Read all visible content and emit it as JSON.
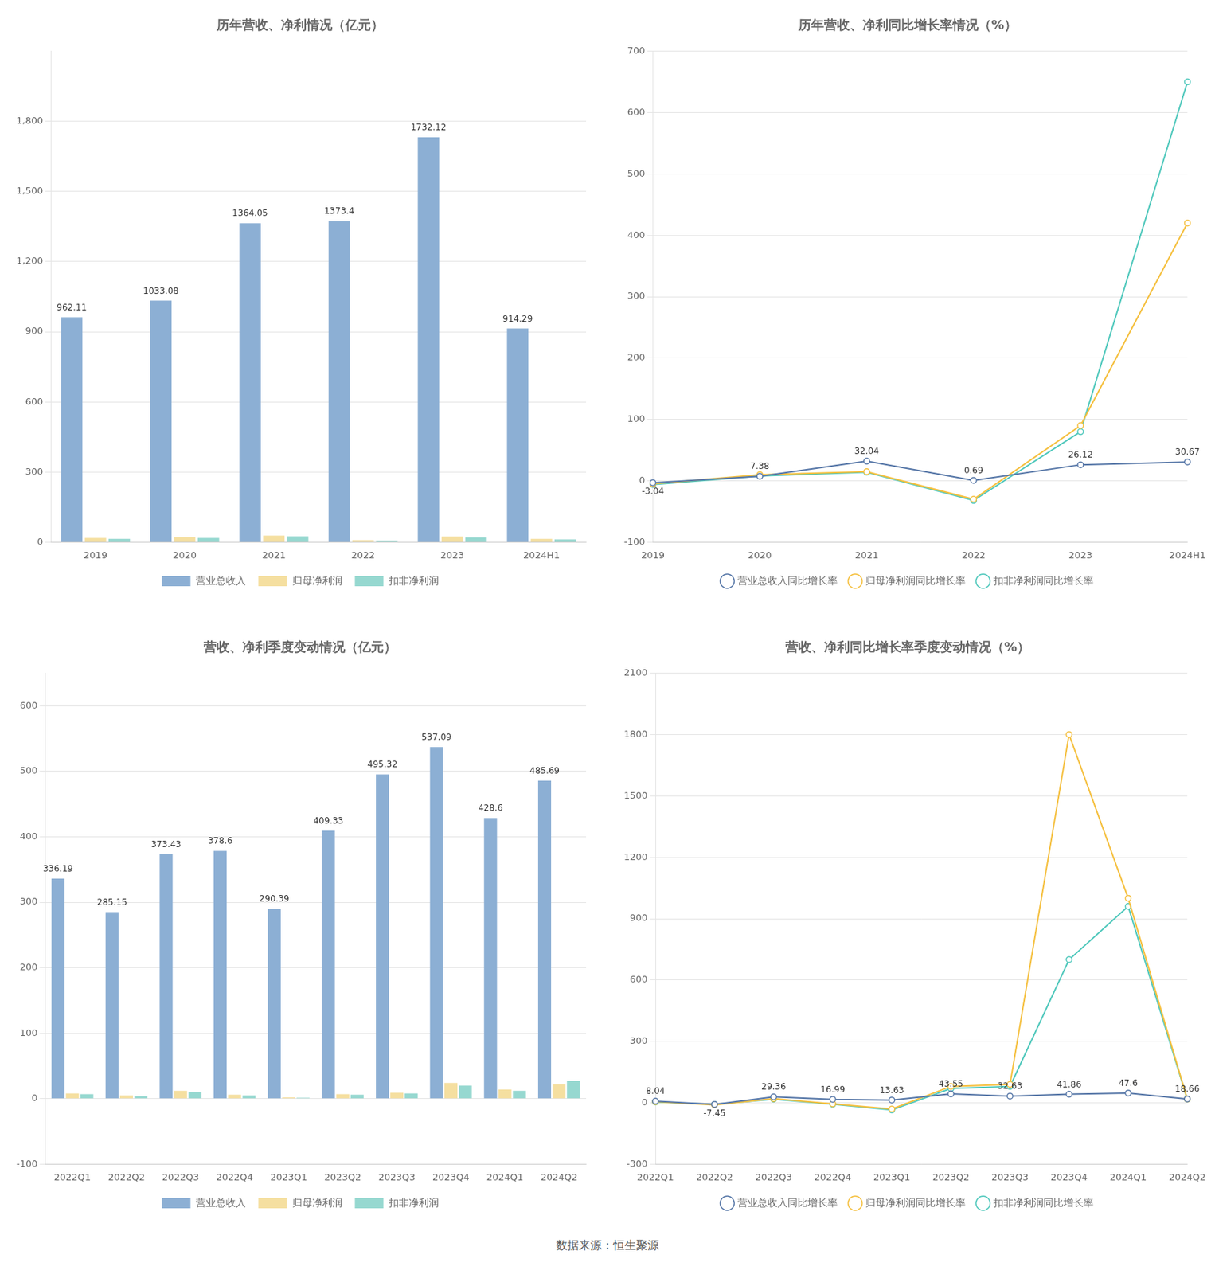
{
  "footer": "数据来源：恒生聚源",
  "chart_data": [
    {
      "type": "bar",
      "title": "历年营收、净利情况（亿元）",
      "categories": [
        "2019",
        "2020",
        "2021",
        "2022",
        "2023",
        "2024H1"
      ],
      "series": [
        {
          "name": "营业总收入",
          "color": "#8cafd4",
          "values": [
            962.11,
            1033.08,
            1364.05,
            1373.4,
            1732.12,
            914.29
          ],
          "data_labels": true
        },
        {
          "name": "归母净利润",
          "color": "#f5dfa0",
          "values": [
            18.0,
            22.0,
            28.0,
            9.0,
            24.0,
            14.0
          ]
        },
        {
          "name": "扣非净利润",
          "color": "#96d8d0",
          "values": [
            14.0,
            18.0,
            25.0,
            7.0,
            20.0,
            12.0
          ]
        }
      ],
      "ylim": [
        0,
        2100
      ],
      "yticks": [
        0,
        300,
        600,
        900,
        {
          "value": 1200,
          "label": "1,200"
        },
        {
          "value": 1500,
          "label": "1,500"
        },
        {
          "value": 1800,
          "label": "1,800"
        }
      ],
      "grid": true,
      "legend": "bottom"
    },
    {
      "type": "line",
      "title": "历年营收、净利同比增长率情况（%）",
      "categories": [
        "2019",
        "2020",
        "2021",
        "2022",
        "2023",
        "2024H1"
      ],
      "series": [
        {
          "name": "营业总收入同比增长率",
          "color": "#5878a8",
          "marker": "circle",
          "line_style": "solid",
          "values": [
            -3.04,
            7.38,
            32.04,
            0.69,
            26.12,
            30.67
          ],
          "data_labels": true
        },
        {
          "name": "归母净利润同比增长率",
          "color": "#f5c040",
          "marker": "circle",
          "line_style": "solid",
          "values": [
            -5.0,
            10.0,
            15.0,
            -30.0,
            90.0,
            420.0
          ]
        },
        {
          "name": "扣非净利润同比增长率",
          "color": "#50c8bc",
          "marker": "circle",
          "line_style": "solid",
          "values": [
            -6.0,
            8.0,
            14.0,
            -32.0,
            80.0,
            650.0
          ]
        }
      ],
      "ylim": [
        -100,
        700
      ],
      "yticks": [
        -100,
        0,
        100,
        200,
        300,
        400,
        500,
        600,
        700
      ],
      "grid": true,
      "legend": "bottom"
    },
    {
      "type": "bar",
      "title": "营收、净利季度变动情况（亿元）",
      "categories": [
        "2022Q1",
        "2022Q2",
        "2022Q3",
        "2022Q4",
        "2023Q1",
        "2023Q2",
        "2023Q3",
        "2023Q4",
        "2024Q1",
        "2024Q2"
      ],
      "series": [
        {
          "name": "营业总收入",
          "color": "#8cafd4",
          "values": [
            336.19,
            285.15,
            373.43,
            378.6,
            290.39,
            409.33,
            495.32,
            537.09,
            428.6,
            485.69
          ],
          "data_labels": true
        },
        {
          "name": "归母净利润",
          "color": "#f5dfa0",
          "values": [
            8.0,
            5.0,
            12.0,
            6.0,
            2.0,
            7.0,
            9.0,
            24.0,
            14.0,
            22.0
          ]
        },
        {
          "name": "扣非净利润",
          "color": "#96d8d0",
          "values": [
            7.0,
            4.0,
            10.0,
            5.0,
            1.5,
            6.0,
            8.0,
            20.0,
            12.0,
            27.0
          ]
        }
      ],
      "ylim": [
        -100,
        650
      ],
      "yticks": [
        -100,
        0,
        100,
        200,
        300,
        400,
        500,
        600
      ],
      "grid": true,
      "legend": "bottom"
    },
    {
      "type": "line",
      "title": "营收、净利同比增长率季度变动情况（%）",
      "categories": [
        "2022Q1",
        "2022Q2",
        "2022Q3",
        "2022Q4",
        "2023Q1",
        "2023Q2",
        "2023Q3",
        "2023Q4",
        "2024Q1",
        "2024Q2"
      ],
      "series": [
        {
          "name": "营业总收入同比增长率",
          "color": "#5878a8",
          "marker": "circle",
          "line_style": "solid",
          "values": [
            8.04,
            -7.45,
            29.36,
            16.99,
            13.63,
            43.55,
            32.63,
            41.86,
            47.6,
            18.66
          ],
          "data_labels": true
        },
        {
          "name": "归母净利润同比增长率",
          "color": "#f5c040",
          "marker": "circle",
          "line_style": "solid",
          "values": [
            5.0,
            -10.0,
            20.0,
            -5.0,
            -30.0,
            80.0,
            90.0,
            1800.0,
            1000.0,
            18.0
          ]
        },
        {
          "name": "扣非净利润同比增长率",
          "color": "#50c8bc",
          "marker": "circle",
          "line_style": "solid",
          "values": [
            4.0,
            -8.0,
            18.0,
            -7.0,
            -35.0,
            70.0,
            80.0,
            700.0,
            960.0,
            18.0
          ]
        }
      ],
      "ylim": [
        -300,
        2100
      ],
      "yticks": [
        -300,
        0,
        300,
        600,
        900,
        1200,
        1500,
        1800,
        2100
      ],
      "grid": true,
      "legend": "bottom"
    }
  ]
}
